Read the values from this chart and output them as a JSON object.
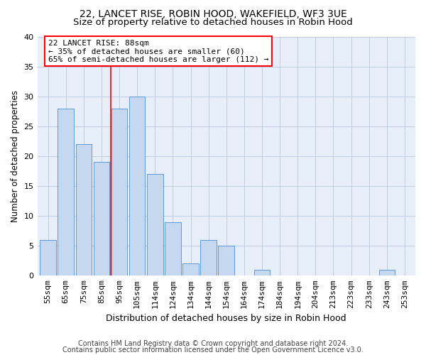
{
  "title1": "22, LANCET RISE, ROBIN HOOD, WAKEFIELD, WF3 3UE",
  "title2": "Size of property relative to detached houses in Robin Hood",
  "xlabel": "Distribution of detached houses by size in Robin Hood",
  "ylabel": "Number of detached properties",
  "categories": [
    "55sqm",
    "65sqm",
    "75sqm",
    "85sqm",
    "95sqm",
    "105sqm",
    "114sqm",
    "124sqm",
    "134sqm",
    "144sqm",
    "154sqm",
    "164sqm",
    "174sqm",
    "184sqm",
    "194sqm",
    "204sqm",
    "213sqm",
    "223sqm",
    "233sqm",
    "243sqm",
    "253sqm"
  ],
  "values": [
    6,
    28,
    22,
    19,
    28,
    30,
    17,
    9,
    2,
    6,
    5,
    0,
    1,
    0,
    0,
    0,
    0,
    0,
    0,
    1,
    0
  ],
  "bar_color": "#c5d8f0",
  "bar_edge_color": "#5b9bd5",
  "annotation_line1": "22 LANCET RISE: 88sqm",
  "annotation_line2": "← 35% of detached houses are smaller (60)",
  "annotation_line3": "65% of semi-detached houses are larger (112) →",
  "annotation_box_color": "white",
  "annotation_box_edge_color": "red",
  "vline_color": "red",
  "vline_pos": 3.5,
  "ylim": [
    0,
    40
  ],
  "yticks": [
    0,
    5,
    10,
    15,
    20,
    25,
    30,
    35,
    40
  ],
  "grid_color": "#b8c8e0",
  "footer1": "Contains HM Land Registry data © Crown copyright and database right 2024.",
  "footer2": "Contains public sector information licensed under the Open Government Licence v3.0.",
  "background_color": "#e8eef8",
  "title1_fontsize": 10,
  "title2_fontsize": 9.5,
  "xlabel_fontsize": 9,
  "ylabel_fontsize": 8.5,
  "annot_fontsize": 8,
  "tick_fontsize": 8,
  "footer_fontsize": 7
}
